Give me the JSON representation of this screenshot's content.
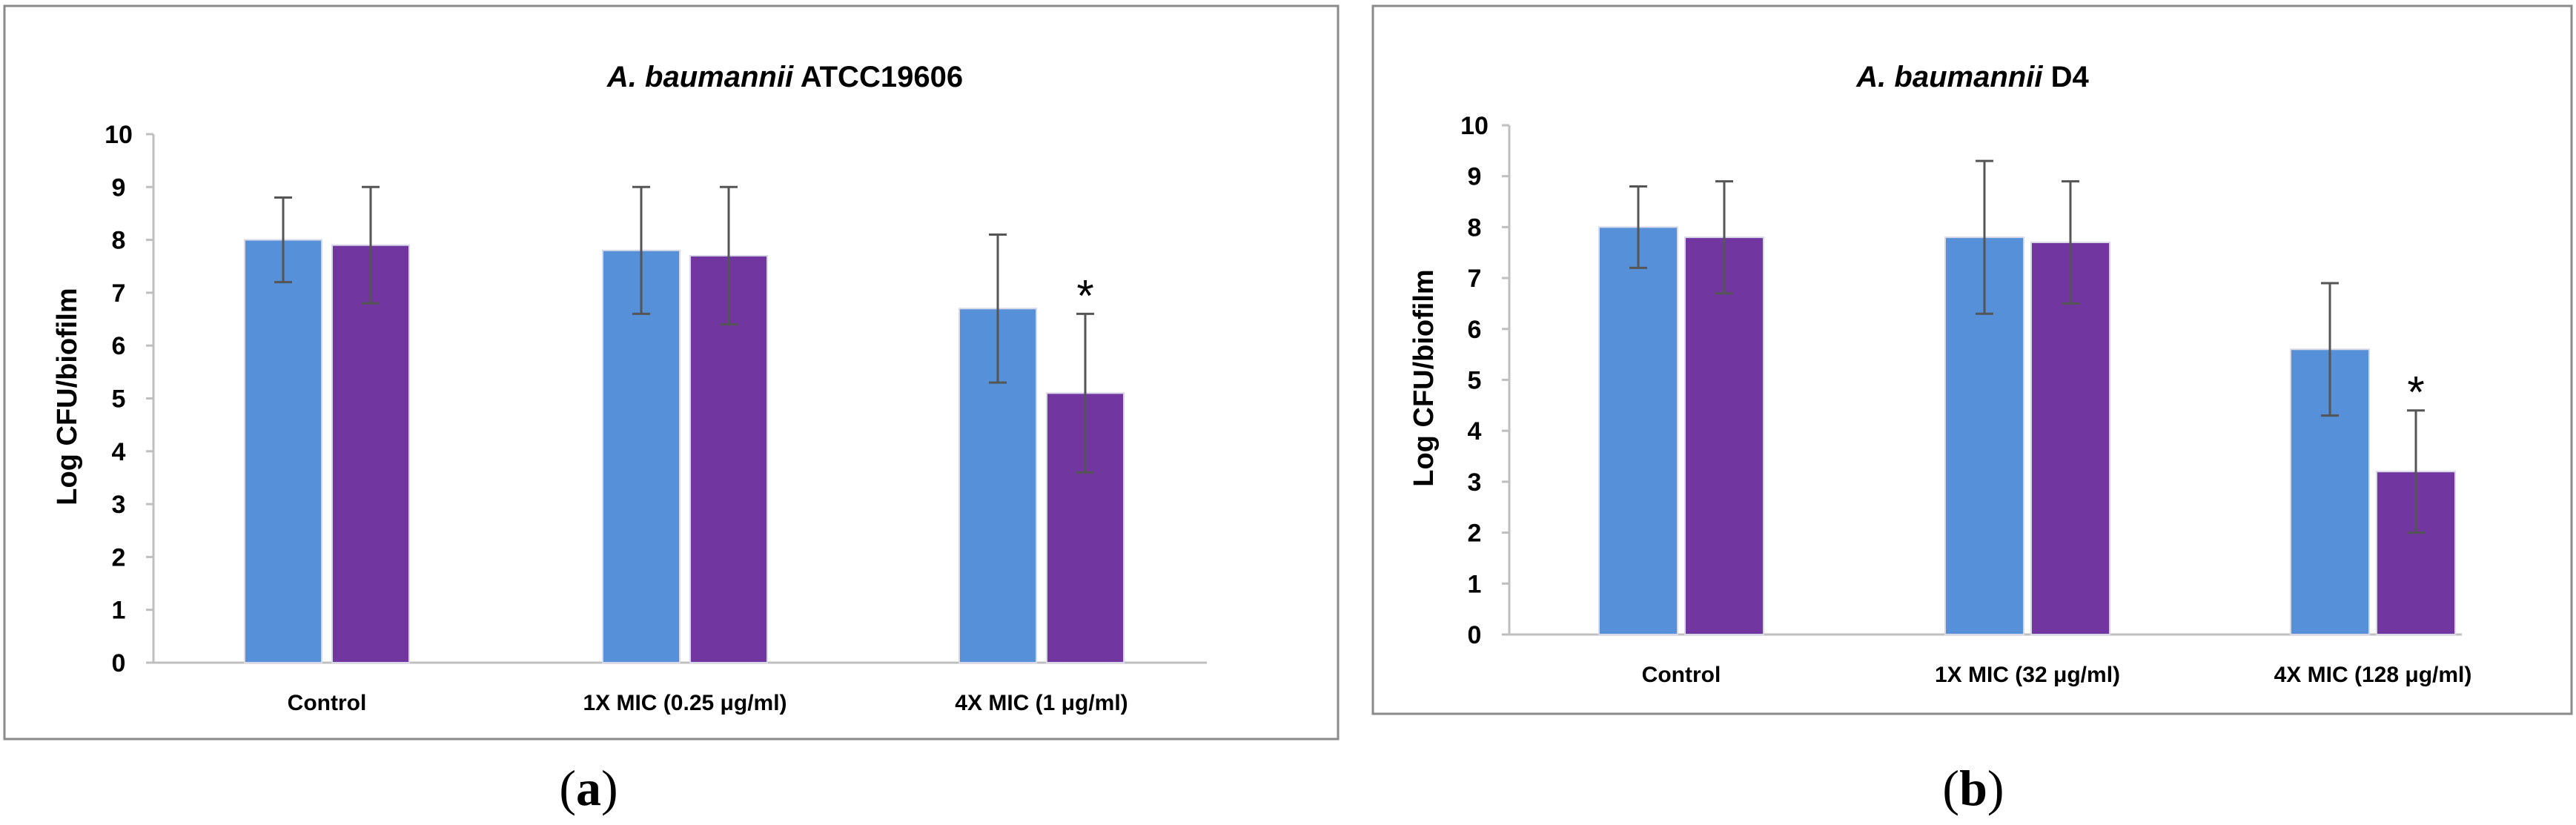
{
  "chart_data": [
    {
      "type": "bar",
      "title_italic": "A. baumannii",
      "title_rest": "ATCC19606",
      "ylabel": "Log CFU/biofilm",
      "ylim": [
        0,
        10
      ],
      "yticks": [
        "0",
        "1",
        "2",
        "3",
        "4",
        "5",
        "6",
        "7",
        "8",
        "9",
        "10"
      ],
      "categories": [
        "Control",
        "1X MIC (0.25 μg/ml)",
        "4X MIC (1 μg/ml)"
      ],
      "series": [
        {
          "name": "series-1",
          "color": "#5590D8",
          "values": [
            8.0,
            7.8,
            6.7
          ],
          "errors": [
            0.8,
            1.2,
            1.4
          ]
        },
        {
          "name": "series-2",
          "color": "#7236A0",
          "values": [
            7.9,
            7.7,
            5.1
          ],
          "errors": [
            1.1,
            1.3,
            1.5
          ]
        }
      ],
      "annotations": [
        {
          "text": "*",
          "series": 1,
          "category": 2
        }
      ],
      "panel_label": "a"
    },
    {
      "type": "bar",
      "title_italic": "A. baumannii",
      "title_rest": "D4",
      "ylabel": "Log CFU/biofilm",
      "ylim": [
        0,
        10
      ],
      "yticks": [
        "0",
        "1",
        "2",
        "3",
        "4",
        "5",
        "6",
        "7",
        "8",
        "9",
        "10"
      ],
      "categories": [
        "Control",
        "1X MIC (32 μg/ml)",
        "4X MIC (128 μg/ml)"
      ],
      "series": [
        {
          "name": "series-1",
          "color": "#5590D8",
          "values": [
            8.0,
            7.8,
            5.6
          ],
          "errors": [
            0.8,
            1.5,
            1.3
          ]
        },
        {
          "name": "series-2",
          "color": "#7236A0",
          "values": [
            7.8,
            7.7,
            3.2
          ],
          "errors": [
            1.1,
            1.2,
            1.2
          ]
        }
      ],
      "annotations": [
        {
          "text": "*",
          "series": 1,
          "category": 2
        }
      ],
      "panel_label": "b"
    }
  ]
}
